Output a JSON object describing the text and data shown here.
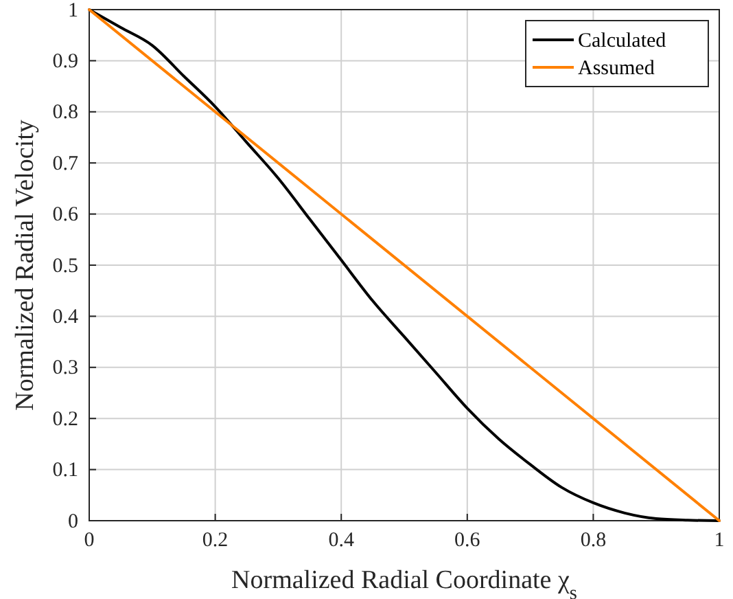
{
  "chart_data": {
    "type": "line",
    "xlabel": "Normalized Radial Coordinate χ$_{s}$",
    "ylabel": "Normalized Radial Velocity",
    "xlim": [
      0,
      1
    ],
    "ylim": [
      0,
      1
    ],
    "xticks": [
      0,
      0.2,
      0.4,
      0.6,
      0.8,
      1
    ],
    "yticks": [
      0,
      0.1,
      0.2,
      0.3,
      0.4,
      0.5,
      0.6,
      0.7,
      0.8,
      0.9,
      1
    ],
    "grid": true,
    "legend": "top right",
    "line_style": "solid",
    "marker": "none",
    "series": [
      {
        "name": "Calculated",
        "color": "#000000",
        "x": [
          0,
          0.05,
          0.1,
          0.15,
          0.2,
          0.25,
          0.3,
          0.35,
          0.4,
          0.45,
          0.5,
          0.55,
          0.6,
          0.65,
          0.7,
          0.75,
          0.8,
          0.85,
          0.9,
          0.95,
          1
        ],
        "values": [
          1,
          0.965,
          0.93,
          0.87,
          0.81,
          0.74,
          0.67,
          0.59,
          0.51,
          0.43,
          0.36,
          0.29,
          0.22,
          0.16,
          0.11,
          0.065,
          0.035,
          0.015,
          0.004,
          0.001,
          0
        ]
      },
      {
        "name": "Assumed",
        "color": "#ff8000",
        "x": [
          0,
          1
        ],
        "values": [
          1,
          0
        ]
      }
    ]
  }
}
